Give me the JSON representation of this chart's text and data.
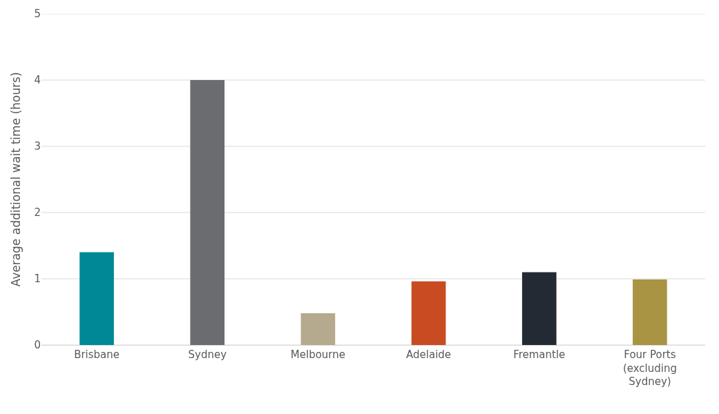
{
  "chart_data": {
    "type": "bar",
    "ylabel": "Average additional wait time (hours)",
    "categories": [
      "Brisbane",
      "Sydney",
      "Melbourne",
      "Adelaide",
      "Fremantle",
      "Four Ports (excluding Sydney)"
    ],
    "values": [
      1.4,
      4.0,
      0.48,
      0.96,
      1.1,
      0.99
    ],
    "colors": [
      "#008896",
      "#6b6c70",
      "#b5a98e",
      "#c84b21",
      "#232a33",
      "#a89442"
    ],
    "ylim": [
      0,
      5
    ],
    "yticks": [
      0,
      1,
      2,
      3,
      4,
      5
    ],
    "grid": "y"
  }
}
